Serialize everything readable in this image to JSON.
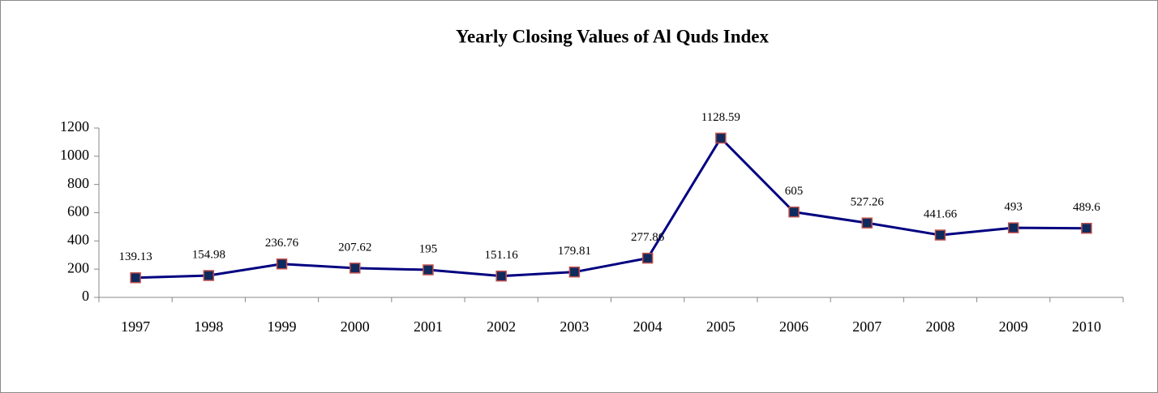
{
  "chart_data": {
    "type": "line",
    "title": "Yearly Closing Values of Al Quds Index",
    "categories": [
      "1997",
      "1998",
      "1999",
      "2000",
      "2001",
      "2002",
      "2003",
      "2004",
      "2005",
      "2006",
      "2007",
      "2008",
      "2009",
      "2010"
    ],
    "values": [
      139.13,
      154.98,
      236.76,
      207.62,
      195,
      151.16,
      179.81,
      277.86,
      1128.59,
      605,
      527.26,
      441.66,
      493,
      489.6
    ],
    "color": "#000080",
    "marker_color": "#0f2a5c",
    "marker_edge_color": "#c0504d",
    "ylim": [
      0,
      1200
    ],
    "yticks": [
      0,
      200,
      400,
      600,
      800,
      1000,
      1200
    ],
    "grid": false
  }
}
